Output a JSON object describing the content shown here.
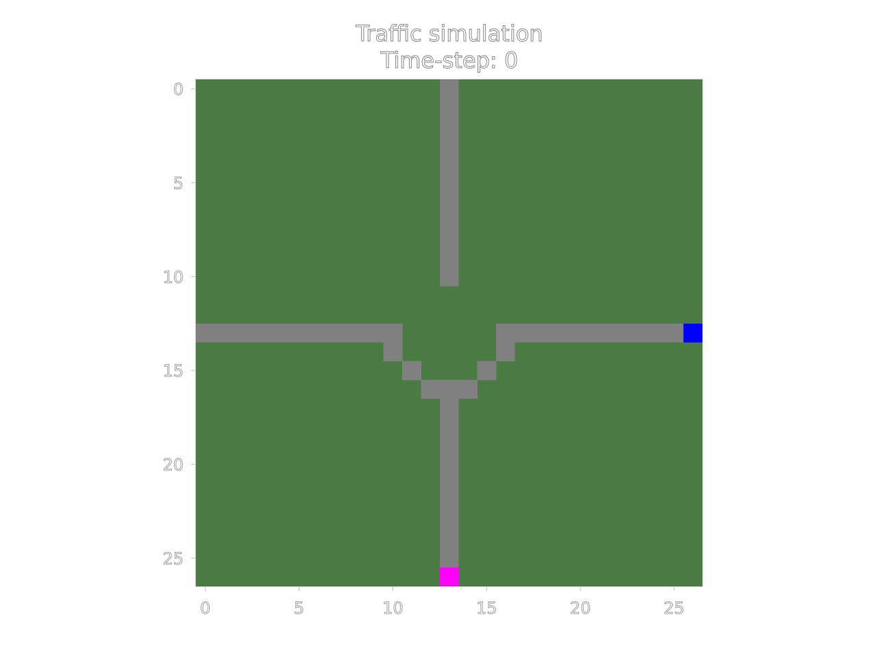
{
  "chart_data": {
    "type": "heatmap",
    "title": "Traffic simulation",
    "subtitle": "Time-step: 0",
    "xlabel": "",
    "ylabel": "",
    "grid_size": [
      27,
      27
    ],
    "xlim": [
      -0.5,
      26.5
    ],
    "ylim": [
      26.5,
      -0.5
    ],
    "x_ticks": [
      0,
      5,
      10,
      15,
      20,
      25
    ],
    "y_ticks": [
      0,
      5,
      10,
      15,
      20,
      25
    ],
    "grid": false,
    "legend": "none",
    "colors": {
      "grass": "#4a7b43",
      "road": "#808080",
      "vehicle_blue": "#0000ff",
      "vehicle_magenta": "#ff00ff",
      "text": "#888888",
      "axis": "#bfbfbf"
    },
    "background_cell": "grass",
    "cells": [
      {
        "row": 0,
        "col": 13,
        "kind": "road"
      },
      {
        "row": 1,
        "col": 13,
        "kind": "road"
      },
      {
        "row": 2,
        "col": 13,
        "kind": "road"
      },
      {
        "row": 3,
        "col": 13,
        "kind": "road"
      },
      {
        "row": 4,
        "col": 13,
        "kind": "road"
      },
      {
        "row": 5,
        "col": 13,
        "kind": "road"
      },
      {
        "row": 6,
        "col": 13,
        "kind": "road"
      },
      {
        "row": 7,
        "col": 13,
        "kind": "road"
      },
      {
        "row": 8,
        "col": 13,
        "kind": "road"
      },
      {
        "row": 9,
        "col": 13,
        "kind": "road"
      },
      {
        "row": 10,
        "col": 13,
        "kind": "road"
      },
      {
        "row": 13,
        "col": 0,
        "kind": "road"
      },
      {
        "row": 13,
        "col": 1,
        "kind": "road"
      },
      {
        "row": 13,
        "col": 2,
        "kind": "road"
      },
      {
        "row": 13,
        "col": 3,
        "kind": "road"
      },
      {
        "row": 13,
        "col": 4,
        "kind": "road"
      },
      {
        "row": 13,
        "col": 5,
        "kind": "road"
      },
      {
        "row": 13,
        "col": 6,
        "kind": "road"
      },
      {
        "row": 13,
        "col": 7,
        "kind": "road"
      },
      {
        "row": 13,
        "col": 8,
        "kind": "road"
      },
      {
        "row": 13,
        "col": 9,
        "kind": "road"
      },
      {
        "row": 13,
        "col": 10,
        "kind": "road"
      },
      {
        "row": 14,
        "col": 10,
        "kind": "road"
      },
      {
        "row": 15,
        "col": 11,
        "kind": "road"
      },
      {
        "row": 16,
        "col": 12,
        "kind": "road"
      },
      {
        "row": 16,
        "col": 13,
        "kind": "road"
      },
      {
        "row": 16,
        "col": 14,
        "kind": "road"
      },
      {
        "row": 15,
        "col": 15,
        "kind": "road"
      },
      {
        "row": 14,
        "col": 16,
        "kind": "road"
      },
      {
        "row": 13,
        "col": 16,
        "kind": "road"
      },
      {
        "row": 13,
        "col": 17,
        "kind": "road"
      },
      {
        "row": 13,
        "col": 18,
        "kind": "road"
      },
      {
        "row": 13,
        "col": 19,
        "kind": "road"
      },
      {
        "row": 13,
        "col": 20,
        "kind": "road"
      },
      {
        "row": 13,
        "col": 21,
        "kind": "road"
      },
      {
        "row": 13,
        "col": 22,
        "kind": "road"
      },
      {
        "row": 13,
        "col": 23,
        "kind": "road"
      },
      {
        "row": 13,
        "col": 24,
        "kind": "road"
      },
      {
        "row": 13,
        "col": 25,
        "kind": "road"
      },
      {
        "row": 13,
        "col": 26,
        "kind": "vehicle_blue"
      },
      {
        "row": 17,
        "col": 13,
        "kind": "road"
      },
      {
        "row": 18,
        "col": 13,
        "kind": "road"
      },
      {
        "row": 19,
        "col": 13,
        "kind": "road"
      },
      {
        "row": 20,
        "col": 13,
        "kind": "road"
      },
      {
        "row": 21,
        "col": 13,
        "kind": "road"
      },
      {
        "row": 22,
        "col": 13,
        "kind": "road"
      },
      {
        "row": 23,
        "col": 13,
        "kind": "road"
      },
      {
        "row": 24,
        "col": 13,
        "kind": "road"
      },
      {
        "row": 25,
        "col": 13,
        "kind": "road"
      },
      {
        "row": 26,
        "col": 13,
        "kind": "vehicle_magenta"
      }
    ]
  }
}
